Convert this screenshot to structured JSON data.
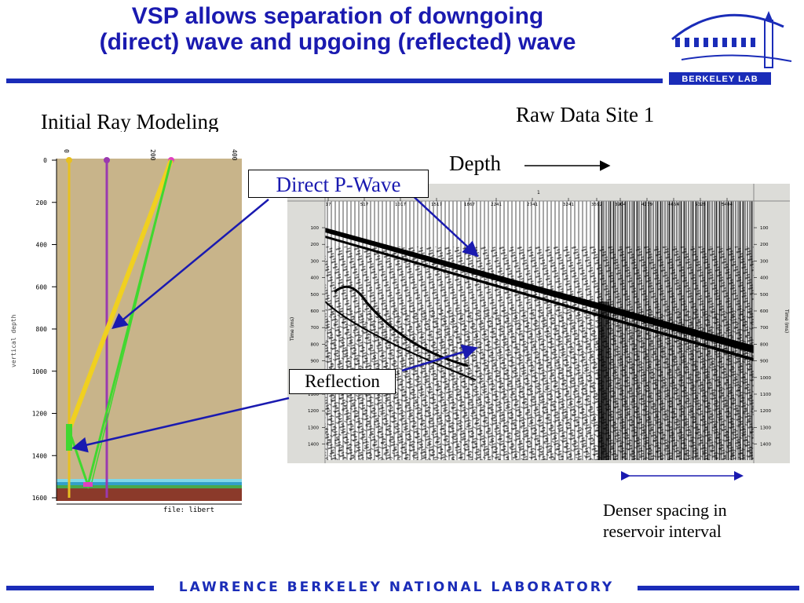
{
  "title": {
    "line1": "VSP allows separation of downgoing",
    "line2": "(direct) wave and upgoing (reflected) wave"
  },
  "logo": {
    "text": "BERKELEY LAB"
  },
  "ray_model": {
    "heading": "Initial Ray Modeling",
    "x_ticks": [
      "0",
      "200",
      "400"
    ],
    "depth_ticks": [
      "0",
      "200",
      "400",
      "600",
      "800",
      "1000",
      "1200",
      "1400",
      "1600"
    ],
    "axis_label": "vertical depth",
    "file_label": "file: libert"
  },
  "raw_data": {
    "heading": "Raw Data  Site 1",
    "depth_label": "Depth",
    "header_number": "1",
    "trace_ticks": [
      "17",
      "517",
      "1017",
      "1517",
      "1867",
      "2241",
      "2741",
      "3241",
      "3592",
      "3904",
      "4279",
      "4654",
      "5029",
      "5404"
    ],
    "time_ticks": [
      "100",
      "200",
      "300",
      "400",
      "500",
      "600",
      "700",
      "800",
      "900",
      "1000",
      "1100",
      "1200",
      "1300",
      "1400"
    ],
    "time_axis_label": "Time (ms)"
  },
  "annotations": {
    "direct_wave": "Direct P-Wave",
    "reflection": "Reflection",
    "denser_line1": "Denser spacing in",
    "denser_line2": "reservoir interval"
  },
  "footer": {
    "text": "LAWRENCE BERKELEY NATIONAL LABORATORY"
  },
  "colors": {
    "accent_blue": "#1a2cb8",
    "title_blue": "#1a1ab0",
    "earth_tan": "#c8b48a",
    "reservoir_brown": "#8b3a2a"
  }
}
